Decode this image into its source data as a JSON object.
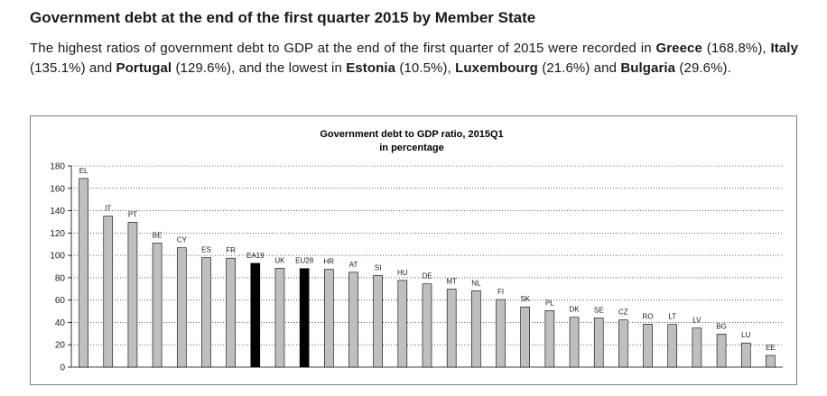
{
  "heading": "Government debt at the end of the first quarter 2015 by Member State",
  "intro": {
    "t1": "The highest ratios of government debt to GDP at the end of the first quarter of 2015 were recorded in ",
    "c1": "Greece",
    "t2": " (168.8%), ",
    "c2": "Italy",
    "t3": " (135.1%) and ",
    "c3": "Portugal",
    "t4": " (129.6%), and the lowest in ",
    "c4": "Estonia",
    "t5": " (10.5%), ",
    "c5": "Luxembourg",
    "t6": " (21.6%) and ",
    "c6": "Bulgaria",
    "t7": " (29.6%)."
  },
  "colors": {
    "bar": "#bfbfbf",
    "aggregate_bar": "#000000",
    "grid": "#000000",
    "text": "#1a1a1a"
  },
  "chart_data": {
    "type": "bar",
    "title": "Government debt to GDP ratio, 2015Q1",
    "subtitle": "in percentage",
    "xlabel": "",
    "ylabel": "",
    "ylim": [
      0,
      180
    ],
    "yticks": [
      0,
      20,
      40,
      60,
      80,
      100,
      120,
      140,
      160,
      180
    ],
    "grid": true,
    "categories": [
      "EL",
      "IT",
      "PT",
      "BE",
      "CY",
      "ES",
      "FR",
      "EA19",
      "UK",
      "EU28",
      "HR",
      "AT",
      "SI",
      "HU",
      "DE",
      "MT",
      "NL",
      "FI",
      "SK",
      "PL",
      "DK",
      "SE",
      "CZ",
      "RO",
      "LT",
      "LV",
      "BG",
      "LU",
      "EE"
    ],
    "values": [
      168.8,
      135.1,
      129.6,
      111.0,
      106.8,
      98.0,
      97.5,
      92.9,
      88.5,
      88.2,
      87.5,
      84.9,
      82.0,
      77.6,
      74.5,
      69.8,
      68.4,
      60.5,
      53.9,
      50.6,
      44.6,
      44.0,
      42.2,
      38.5,
      38.2,
      35.0,
      29.6,
      21.6,
      10.5
    ],
    "highlighted": [
      "EA19",
      "EU28"
    ]
  }
}
